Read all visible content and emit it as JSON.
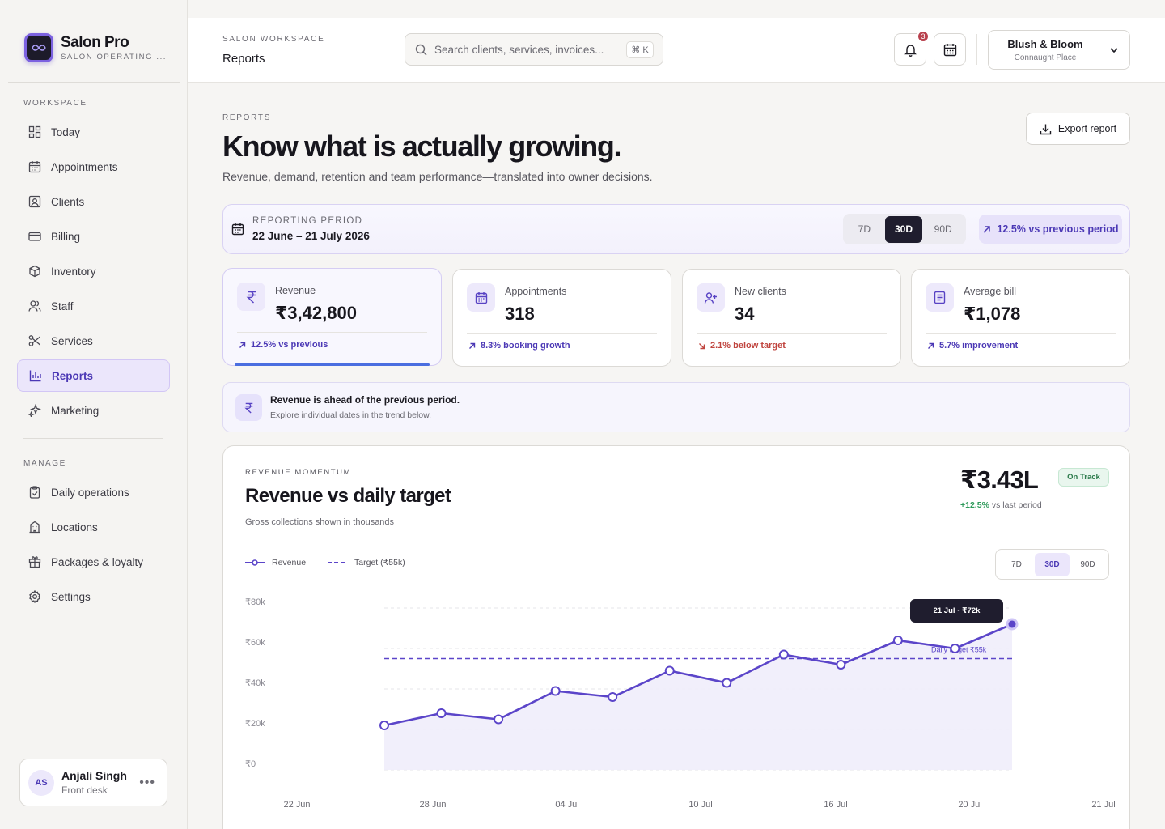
{
  "brand": {
    "name": "Salon Pro",
    "subtitle": "SALON OPERATING ..."
  },
  "sidebar": {
    "workspace_label": "WORKSPACE",
    "workspace_items": [
      {
        "label": "Today",
        "icon": "grid-icon"
      },
      {
        "label": "Appointments",
        "icon": "calendar-icon"
      },
      {
        "label": "Clients",
        "icon": "client-card-icon"
      },
      {
        "label": "Billing",
        "icon": "credit-card-icon"
      },
      {
        "label": "Inventory",
        "icon": "box-icon"
      },
      {
        "label": "Staff",
        "icon": "people-icon"
      },
      {
        "label": "Services",
        "icon": "scissors-icon"
      },
      {
        "label": "Reports",
        "icon": "bar-chart-icon",
        "active": true
      },
      {
        "label": "Marketing",
        "icon": "sparkle-icon"
      }
    ],
    "manage_label": "MANAGE",
    "manage_items": [
      {
        "label": "Daily operations",
        "icon": "clipboard-icon"
      },
      {
        "label": "Locations",
        "icon": "building-icon"
      },
      {
        "label": "Packages & loyalty",
        "icon": "gift-icon"
      },
      {
        "label": "Settings",
        "icon": "gear-icon"
      }
    ],
    "user": {
      "initials": "AS",
      "name": "Anjali Singh",
      "role": "Front desk",
      "more": "•••"
    }
  },
  "topbar": {
    "eyebrow": "SALON WORKSPACE",
    "title": "Reports",
    "search_placeholder": "Search clients, services, invoices...",
    "search_shortcut": "⌘ K",
    "notification_count": "3",
    "location": {
      "name": "Blush & Bloom",
      "area": "Connaught Place"
    }
  },
  "page": {
    "eyebrow": "REPORTS",
    "title": "Know what is actually growing.",
    "subtitle": "Revenue, demand, retention and team performance—translated into owner decisions.",
    "export_label": "Export report"
  },
  "period": {
    "label": "REPORTING PERIOD",
    "range": "22 June – 21 July 2026",
    "options": [
      "7D",
      "30D",
      "90D"
    ],
    "selected": "30D",
    "delta": "12.5% vs previous period"
  },
  "kpis": [
    {
      "label": "Revenue",
      "value": "₹3,42,800",
      "delta": "12.5% vs previous",
      "trend": "up",
      "icon": "rupee-icon"
    },
    {
      "label": "Appointments",
      "value": "318",
      "delta": "8.3% booking growth",
      "trend": "up",
      "icon": "calendar-icon"
    },
    {
      "label": "New clients",
      "value": "34",
      "delta": "2.1% below target",
      "trend": "down",
      "icon": "user-plus-icon"
    },
    {
      "label": "Average bill",
      "value": "₹1,078",
      "delta": "5.7% improvement",
      "trend": "up",
      "icon": "receipt-icon"
    }
  ],
  "insight": {
    "title": "Revenue is ahead of the previous period.",
    "subtitle": "Explore individual dates in the trend below."
  },
  "revenue_card": {
    "eyebrow": "REVENUE MOMENTUM",
    "title": "Revenue vs daily target",
    "subtitle": "Gross collections shown in thousands",
    "total": "₹3.43L",
    "change": "+12.5%",
    "change_suffix": "vs last period",
    "status_badge": "On Track",
    "legend_revenue": "Revenue",
    "legend_target": "Target (₹55k)",
    "range_options": [
      "7D",
      "30D",
      "90D"
    ],
    "range_selected": "30D",
    "tooltip": "21 Jul · ₹72k",
    "target_label": "Daily target ₹55k"
  },
  "colors": {
    "accent": "#5b45c9",
    "accent_soft": "#ebe6fb",
    "positive": "#2f9a5b",
    "negative": "#c0453f",
    "dark": "#1f1d2e"
  },
  "chart_data": {
    "type": "area",
    "title": "Revenue vs daily target",
    "ylabel": "",
    "xlabel": "",
    "y_ticks": [
      "₹0",
      "₹20k",
      "₹40k",
      "₹60k",
      "₹80k"
    ],
    "x_ticks": [
      "22 Jun",
      "28 Jun",
      "04 Jul",
      "10 Jul",
      "16 Jul",
      "20 Jul",
      "21 Jul"
    ],
    "ylim": [
      0,
      80
    ],
    "series": [
      {
        "name": "Revenue",
        "values": [
          22,
          28,
          25,
          39,
          36,
          49,
          43,
          57,
          52,
          64,
          60,
          72
        ]
      },
      {
        "name": "Target (₹55k)",
        "values": [
          55,
          55,
          55,
          55,
          55,
          55,
          55,
          55,
          55,
          55,
          55,
          55
        ]
      }
    ],
    "grid": true,
    "legend": "top-left"
  }
}
